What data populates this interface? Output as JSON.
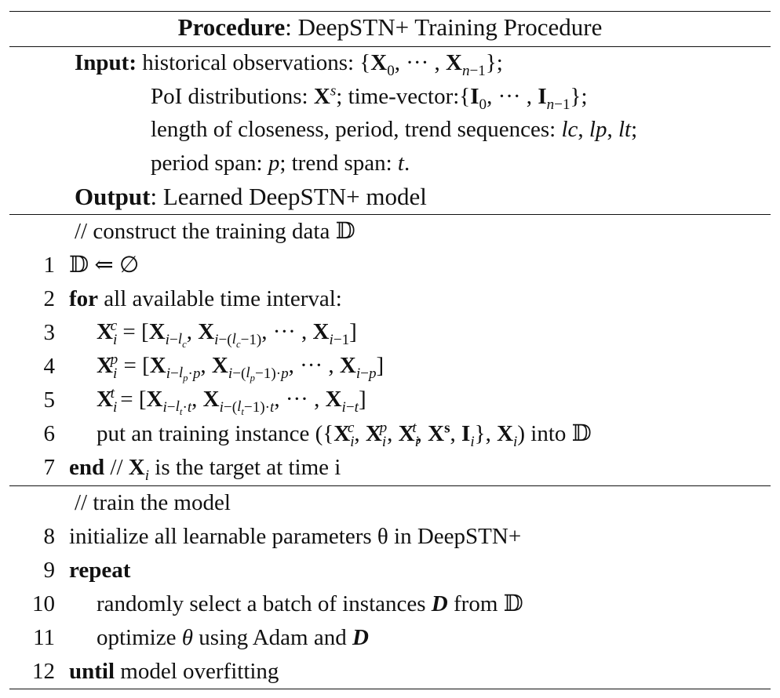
{
  "header": {
    "label": "Procedure",
    "title": ": DeepSTN+ Training Procedure"
  },
  "input": {
    "label": "Input:",
    "line1": "historical observations: {X₀, ··· , Xₙ₋₁};",
    "line2": "PoI distributions: Xˢ; time-vector:{I₀, ··· , Iₙ₋₁};",
    "line3": "length of closeness, period, trend sequences: lc, lp, lt;",
    "line4": "period span: p; trend span: t."
  },
  "output": {
    "label": "Output",
    "text": ": Learned DeepSTN+ model"
  },
  "section1": {
    "comment": "// construct the training data 𝔻",
    "lines": [
      {
        "num": "1",
        "text": "𝔻 ⇐ ∅"
      },
      {
        "num": "2",
        "kw": "for",
        "text": " all available time interval:"
      },
      {
        "num": "3",
        "text": "X_i^c = [X_{i−l_c}, X_{i−(l_c−1)}, ··· , X_{i−1}]"
      },
      {
        "num": "4",
        "text": "X_i^p = [X_{i−l_p·p}, X_{i−(l_p−1)·p}, ··· , X_{i−p}]"
      },
      {
        "num": "5",
        "text": "X_i^t = [X_{i−l_t·t}, X_{i−(l_t−1)·t}, ··· , X_{i−t}]"
      },
      {
        "num": "6",
        "text": "put an training instance ({X_i^c, X_i^p, X_i^t, X^s, I_i}, X_i) into 𝔻"
      },
      {
        "num": "7",
        "kw": "end",
        "text": " // X_i is the target at time i"
      }
    ]
  },
  "section2": {
    "comment": "// train the model",
    "lines": [
      {
        "num": "8",
        "text": "initialize all learnable parameters θ in DeepSTN+"
      },
      {
        "num": "9",
        "kw": "repeat",
        "text": ""
      },
      {
        "num": "10",
        "text": "randomly select a batch of instances D from 𝔻"
      },
      {
        "num": "11",
        "text": "optimize θ using Adam and D"
      },
      {
        "num": "12",
        "kw": "until",
        "text": " model overfitting"
      }
    ]
  }
}
